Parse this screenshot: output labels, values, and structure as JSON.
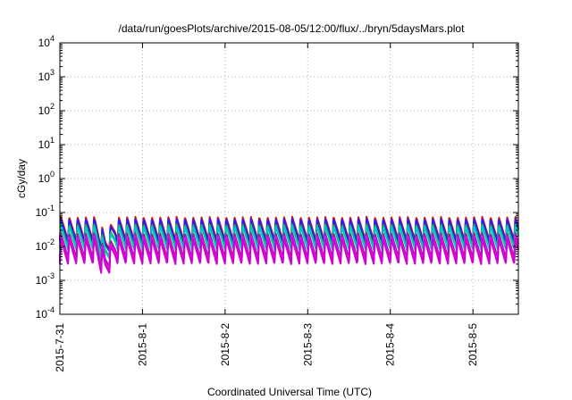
{
  "chart_data": {
    "type": "line",
    "title": "/data/run/goesPlots/archive/2015-08-05/12:00/flux/../bryn/5daysMars.plot",
    "xlabel": "Coordinated Universal Time (UTC)",
    "ylabel": "cGy/day",
    "y_scale": "log",
    "ylim_exponents": [
      -4,
      4
    ],
    "y_ticks": [
      {
        "base": "10",
        "exp": "-4"
      },
      {
        "base": "10",
        "exp": "-3"
      },
      {
        "base": "10",
        "exp": "-2"
      },
      {
        "base": "10",
        "exp": "-1"
      },
      {
        "base": "10",
        "exp": "0"
      },
      {
        "base": "10",
        "exp": "1"
      },
      {
        "base": "10",
        "exp": "2"
      },
      {
        "base": "10",
        "exp": "3"
      },
      {
        "base": "10",
        "exp": "4"
      }
    ],
    "x_ticks": [
      "2015-7-31",
      "2015-8-1",
      "2015-8-2",
      "2015-8-3",
      "2015-8-4",
      "2015-8-5"
    ],
    "xlim_days": [
      0,
      5.55
    ],
    "grid": true,
    "legend": "none",
    "pattern": {
      "cycle_days": 0.1,
      "dip": {
        "center_day": 0.55,
        "half_width_days": 0.12,
        "depth_decades": 0.45
      }
    },
    "series": [
      {
        "color": "#e01010",
        "peak": 0.075,
        "trough": 0.015
      },
      {
        "color": "#2020ff",
        "peak": 0.065,
        "trough": 0.013
      },
      {
        "color": "#20b020",
        "peak": 0.045,
        "trough": 0.009
      },
      {
        "color": "#00c8c8",
        "peak": 0.04,
        "trough": 0.008
      },
      {
        "color": "#8a2b8a",
        "peak": 0.025,
        "trough": 0.0045
      },
      {
        "color": "#ff00ff",
        "peak": 0.02,
        "trough": 0.0035
      },
      {
        "color": "#d000d0",
        "peak": 0.017,
        "trough": 0.003
      }
    ]
  }
}
